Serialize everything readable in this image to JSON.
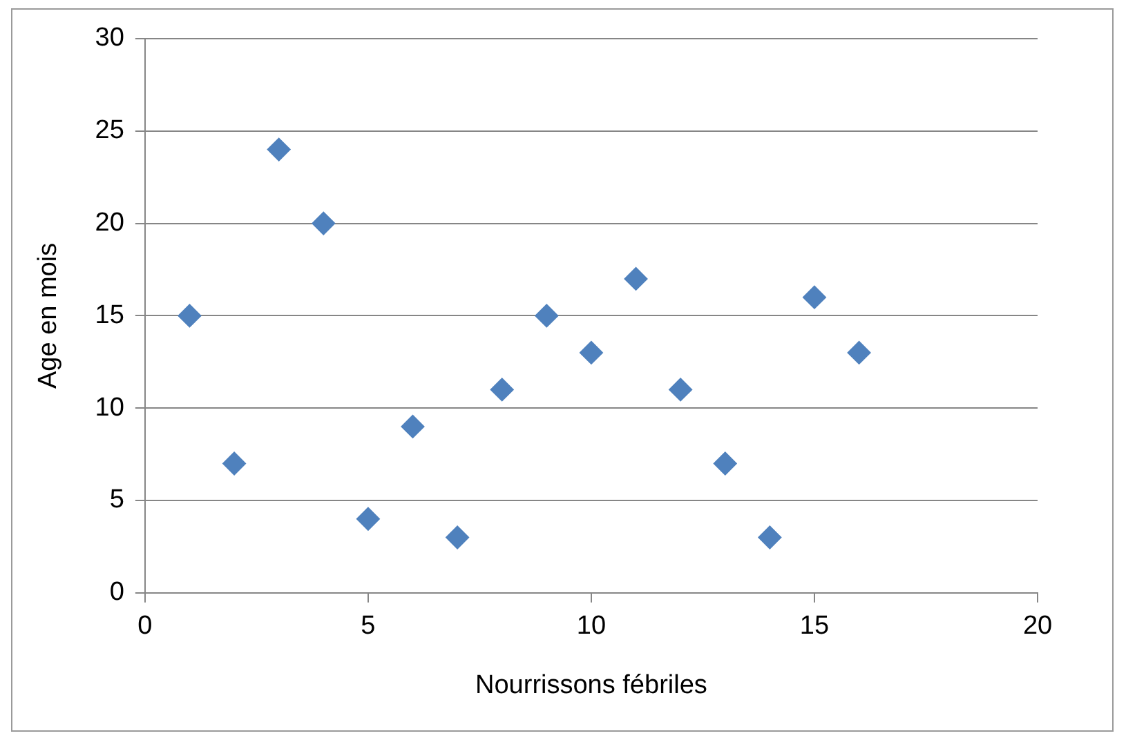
{
  "chart_data": {
    "type": "scatter",
    "xlabel": "Nourrissons fébriles",
    "ylabel": "Age en mois",
    "x": [
      1,
      2,
      3,
      4,
      5,
      6,
      7,
      8,
      9,
      10,
      11,
      12,
      13,
      14,
      15,
      16
    ],
    "series": [
      {
        "color": "#4f81bd",
        "values": [
          15,
          7,
          24,
          20,
          4,
          9,
          3,
          11,
          15,
          13,
          17,
          11,
          7,
          3,
          16,
          13
        ]
      }
    ],
    "xlim": [
      0,
      20
    ],
    "xticks": [
      0,
      5,
      10,
      15,
      20
    ],
    "ylim": [
      0,
      30
    ],
    "yticks": [
      0,
      5,
      10,
      15,
      20,
      25,
      30
    ],
    "grid": "y",
    "legend": false,
    "marker": "diamond"
  }
}
